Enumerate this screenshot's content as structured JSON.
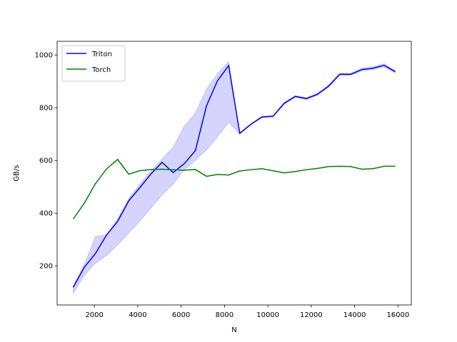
{
  "chart_data": {
    "type": "line",
    "x_label": "N",
    "y_label": "GB/s",
    "x": [
      1024,
      1536,
      2048,
      2560,
      3072,
      3584,
      4096,
      4608,
      5120,
      5632,
      6144,
      6656,
      7168,
      7680,
      8192,
      8704,
      9216,
      9728,
      10240,
      10752,
      11264,
      11776,
      12288,
      12800,
      13312,
      13824,
      14336,
      14848,
      15360,
      15872
    ],
    "series": [
      {
        "name": "Triton",
        "color": "#0000ff",
        "values": [
          119,
          195,
          247,
          317,
          369,
          447,
          497,
          549,
          593,
          554,
          588,
          637,
          807,
          903,
          960,
          703,
          737,
          765,
          768,
          817,
          843,
          835,
          851,
          882,
          927,
          927,
          945,
          950,
          961,
          937
        ],
        "band": {
          "color": "#0000ff",
          "low": [
            95,
            165,
            210,
            240,
            280,
            325,
            370,
            420,
            470,
            510,
            565,
            600,
            640,
            690,
            745,
            700,
            735,
            762,
            765,
            812,
            840,
            830,
            848,
            878,
            922,
            923,
            940,
            945,
            955,
            932
          ],
          "high": [
            125,
            205,
            312,
            318,
            378,
            455,
            510,
            560,
            605,
            650,
            730,
            780,
            870,
            930,
            975,
            705,
            740,
            768,
            770,
            820,
            846,
            838,
            855,
            886,
            930,
            930,
            950,
            955,
            967,
            942
          ]
        }
      },
      {
        "name": "Torch",
        "color": "#008000",
        "values": [
          378,
          438,
          512,
          568,
          604,
          548,
          561,
          566,
          567,
          565,
          563,
          566,
          540,
          547,
          545,
          560,
          565,
          569,
          561,
          553,
          558,
          565,
          570,
          577,
          578,
          577,
          567,
          569,
          578,
          578
        ]
      }
    ],
    "xlim": [
      282,
      16614
    ],
    "xticks": [
      2000,
      4000,
      6000,
      8000,
      10000,
      12000,
      14000,
      16000
    ],
    "ylim": [
      52,
      1052
    ],
    "yticks": [
      200,
      400,
      600,
      800,
      1000
    ],
    "legend": "upper left"
  }
}
